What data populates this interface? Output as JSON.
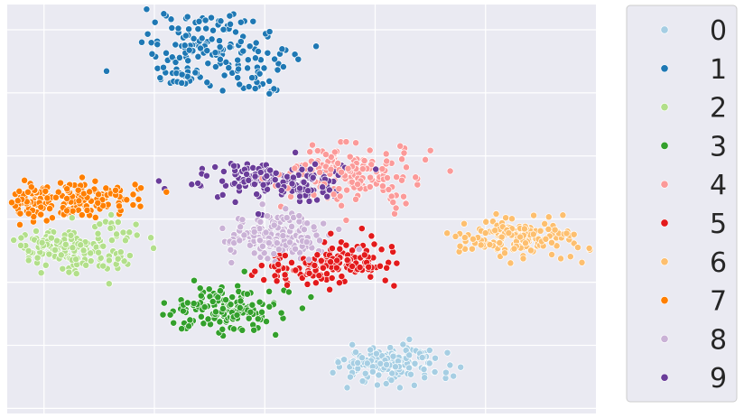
{
  "chart_data": {
    "type": "scatter",
    "title": "",
    "xlabel": "",
    "ylabel": "",
    "xlim": [
      -80,
      80
    ],
    "ylim": [
      -82,
      80
    ],
    "xticks": [
      -70,
      -40,
      -10,
      20,
      50
    ],
    "yticks": [
      -80,
      -55,
      -30,
      -5,
      20,
      45,
      70
    ],
    "grid": true,
    "legend_position": "outside-right",
    "series": [
      {
        "name": "0",
        "color": "#a6cee3",
        "clusters": [
          {
            "cx": 25,
            "cy": -63,
            "sx": 7,
            "sy": 4.2,
            "n": 150
          },
          {
            "cx": 18,
            "cy": -61,
            "sx": 4,
            "sy": 1.5,
            "n": 12
          }
        ]
      },
      {
        "name": "1",
        "color": "#1f78b4",
        "clusters": [
          {
            "cx": -24,
            "cy": 62,
            "sx": 11,
            "sy": 7,
            "rot": -28,
            "n": 170
          },
          {
            "cx": -34,
            "cy": 54,
            "sx": 3.5,
            "sy": 2.5,
            "n": 25
          }
        ]
      },
      {
        "name": "2",
        "color": "#b2df8a",
        "clusters": [
          {
            "cx": -63,
            "cy": -18,
            "sx": 8,
            "sy": 4,
            "rot": -15,
            "n": 140
          },
          {
            "cx": -51,
            "cy": -10,
            "sx": 4,
            "sy": 3.5,
            "n": 20
          }
        ]
      },
      {
        "name": "3",
        "color": "#33a02c",
        "clusters": [
          {
            "cx": -21,
            "cy": -40,
            "sx": 7.5,
            "sy": 4.5,
            "n": 150
          },
          {
            "cx": -31,
            "cy": -47,
            "sx": 1.5,
            "sy": 1.2,
            "n": 6
          }
        ]
      },
      {
        "name": "4",
        "color": "#fb9a99",
        "clusters": [
          {
            "cx": 14,
            "cy": 12,
            "sx": 8.5,
            "sy": 6,
            "n": 150
          },
          {
            "cx": 6,
            "cy": 17,
            "sx": 3,
            "sy": 2,
            "n": 15
          }
        ]
      },
      {
        "name": "5",
        "color": "#e31a1c",
        "clusters": [
          {
            "cx": 2,
            "cy": -25,
            "sx": 5.5,
            "sy": 3.5,
            "n": 70
          },
          {
            "cx": 15,
            "cy": -20,
            "sx": 5,
            "sy": 4,
            "n": 80
          }
        ]
      },
      {
        "name": "6",
        "color": "#fdbf6f",
        "clusters": [
          {
            "cx": 59,
            "cy": -12,
            "sx": 8,
            "sy": 4,
            "n": 160
          }
        ]
      },
      {
        "name": "7",
        "color": "#ff7f00",
        "clusters": [
          {
            "cx": -65,
            "cy": 3,
            "sx": 10,
            "sy": 3.8,
            "rot": 5,
            "n": 190
          }
        ]
      },
      {
        "name": "8",
        "color": "#cab2d6",
        "clusters": [
          {
            "cx": -6,
            "cy": -12,
            "sx": 6.5,
            "sy": 5.5,
            "n": 160
          },
          {
            "cx": -15,
            "cy": -12,
            "sx": 3,
            "sy": 3,
            "n": 15
          }
        ]
      },
      {
        "name": "9",
        "color": "#6a3d9a",
        "clusters": [
          {
            "cx": -8,
            "cy": 11,
            "sx": 10,
            "sy": 3.5,
            "n": 170
          },
          {
            "cx": 1,
            "cy": 6,
            "sx": 4,
            "sy": 2,
            "n": 25
          }
        ]
      }
    ]
  }
}
